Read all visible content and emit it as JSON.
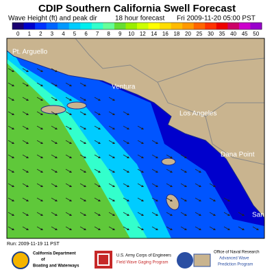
{
  "header": {
    "title": "CDIP Southern California Swell Forecast",
    "subtitle": [
      "Wave Height (ft) and peak dir",
      "18 hour forecast",
      "Fri 2009-11-20 05:00 PST"
    ]
  },
  "legend": {
    "levels": [
      0,
      1,
      2,
      3,
      4,
      5,
      6,
      7,
      8,
      9,
      10,
      12,
      14,
      16,
      18,
      20,
      25,
      30,
      35,
      40,
      45,
      50
    ],
    "colors": [
      "#1a0070",
      "#0000cc",
      "#0033ff",
      "#0066ff",
      "#0099ff",
      "#00ccff",
      "#00eeee",
      "#33ffcc",
      "#66ff99",
      "#66dd33",
      "#99ee00",
      "#ccff00",
      "#ffff00",
      "#ffdd00",
      "#ffbb00",
      "#ff9900",
      "#ff6600",
      "#ff3300",
      "#ee0000",
      "#cc0066",
      "#cc00cc",
      "#9900cc"
    ]
  },
  "map": {
    "places": [
      "Pt. Arguello",
      "Ventura",
      "Los Angeles",
      "Dana Point",
      "San D"
    ]
  },
  "footer": {
    "run": "Run: 2009-11-19 11 PST",
    "logos": [
      {
        "lines": [
          "California Department",
          "of",
          "Boating and Waterways"
        ]
      },
      {
        "lines": [
          "U.S. Army Corps of Engineers",
          "Field Wave Gaging Program"
        ]
      },
      {
        "lines": [
          "Office of Naval Research",
          "Advanced Wave",
          "Prediction Program"
        ]
      }
    ]
  }
}
